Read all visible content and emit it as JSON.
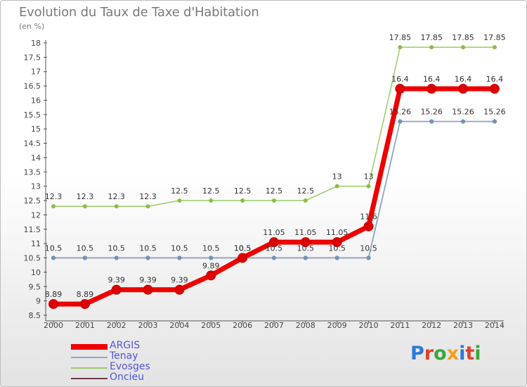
{
  "title": "Evolution du Taux de Taxe d'Habitation",
  "unit_label": "(en %)",
  "logo": {
    "text": "Proxiti",
    "letters": [
      {
        "ch": "P",
        "color": "#2b7bd6"
      },
      {
        "ch": "r",
        "color": "#e0412f"
      },
      {
        "ch": "o",
        "color": "#3aa63a"
      },
      {
        "ch": "x",
        "color": "#f0a21a"
      },
      {
        "ch": "i",
        "color": "#2b7bd6"
      },
      {
        "ch": "t",
        "color": "#e0412f"
      },
      {
        "ch": "i",
        "color": "#3aa63a"
      }
    ]
  },
  "chart_data": {
    "type": "line",
    "title": "Evolution du Taux de Taxe d'Habitation",
    "ylabel": "(en %)",
    "xlabel": "",
    "x": [
      "2000",
      "2001",
      "2002",
      "2003",
      "2004",
      "2005",
      "2006",
      "2007",
      "2008",
      "2009",
      "2010",
      "2011",
      "2012",
      "2013",
      "2014"
    ],
    "ylim": [
      8.5,
      18
    ],
    "yticks": [
      "8.5",
      "9",
      "9.5",
      "10",
      "10.5",
      "11",
      "11.5",
      "12",
      "12.5",
      "13",
      "13.5",
      "14",
      "14.5",
      "15",
      "15.5",
      "16",
      "16.5",
      "17",
      "17.5",
      "18"
    ],
    "grid": false,
    "legend_position": "bottom-left",
    "series": [
      {
        "name": "Evosges",
        "color": "#99cc66",
        "marker": "#88c040",
        "values": [
          12.3,
          12.3,
          12.3,
          12.3,
          12.5,
          12.5,
          12.5,
          12.5,
          12.5,
          13,
          13,
          17.85,
          17.85,
          17.85,
          17.85
        ],
        "labels": [
          "12.3",
          "12.3",
          "12.3",
          "12.3",
          "12.5",
          "12.5",
          "12.5",
          "12.5",
          "12.5",
          "13",
          "13",
          "17.85",
          "17.85",
          "17.85",
          "17.85"
        ]
      },
      {
        "name": "Onciеu",
        "color": "#6d3d48",
        "marker": "#4a1e28",
        "values": [
          10.5,
          10.5,
          10.5,
          10.5,
          10.5,
          10.5,
          10.5,
          10.5,
          10.5,
          10.5,
          10.5,
          15.26,
          15.26,
          15.26,
          15.26
        ],
        "labels": [
          "10.5",
          "10.5",
          "10.5",
          "10.5",
          "10.5",
          "10.5",
          "10.5",
          "10.5",
          "10.5",
          "10.5",
          "10.5",
          "15.26",
          "15.26",
          "15.26",
          "15.26"
        ]
      },
      {
        "name": "Tenay",
        "color": "#88aacc",
        "marker": "#6f95bb",
        "values": [
          10.5,
          10.5,
          10.5,
          10.5,
          10.5,
          10.5,
          10.5,
          10.5,
          10.5,
          10.5,
          10.5,
          15.26,
          15.26,
          15.26,
          15.26
        ],
        "labels": []
      },
      {
        "name": "ARGIS",
        "color": "#ee0000",
        "marker": "#dd0000",
        "values": [
          8.89,
          8.89,
          9.39,
          9.39,
          9.39,
          9.89,
          10.5,
          11.05,
          11.05,
          11.05,
          11.6,
          16.4,
          16.4,
          16.4,
          16.4
        ],
        "labels": [
          "8.89",
          "8.89",
          "9.39",
          "9.39",
          "9.39",
          "9.89",
          "10.5",
          "11.05",
          "11.05",
          "11.05",
          "11.6",
          "16.4",
          "16.4",
          "16.4",
          "16.4"
        ]
      }
    ],
    "legend": [
      {
        "name": "ARGIS",
        "color": "#ee0000",
        "text_color": "#5555dd"
      },
      {
        "name": "Tenay",
        "color": "#88aacc",
        "text_color": "#5555dd"
      },
      {
        "name": "Evosges",
        "color": "#99cc66",
        "text_color": "#5555dd"
      },
      {
        "name": "Oncieu",
        "color": "#6d3d48",
        "text_color": "#5555dd"
      }
    ]
  }
}
